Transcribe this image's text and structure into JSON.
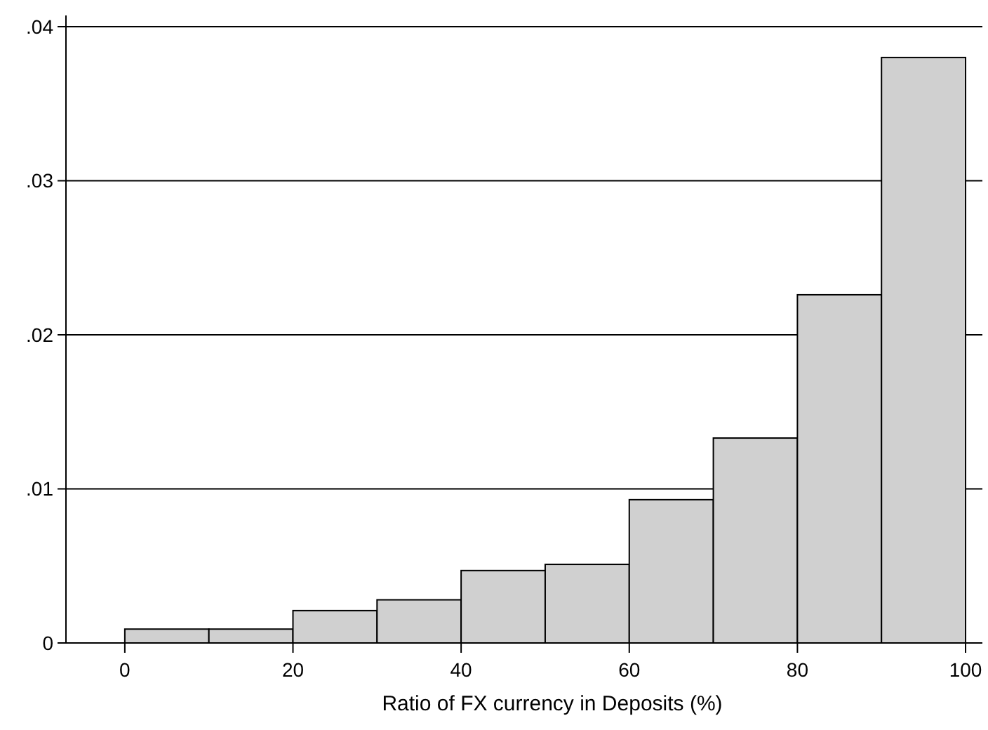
{
  "chart_data": {
    "type": "histogram",
    "xlabel": "Ratio of FX currency in Deposits (%)",
    "bins": [
      0,
      10,
      20,
      30,
      40,
      50,
      60,
      70,
      80,
      90,
      100
    ],
    "values": [
      0.0009,
      0.0009,
      0.0021,
      0.0028,
      0.0047,
      0.0051,
      0.0093,
      0.0133,
      0.0226,
      0.038
    ],
    "color": "#d0d0d0",
    "xlim": [
      -7,
      102
    ],
    "xticks": [
      0,
      20,
      40,
      60,
      80,
      100
    ],
    "ylim": [
      0,
      0.04
    ],
    "yticks": [
      {
        "value": 0,
        "label": "0"
      },
      {
        "value": 0.01,
        "label": ".01"
      },
      {
        "value": 0.02,
        "label": ".02"
      },
      {
        "value": 0.03,
        "label": ".03"
      },
      {
        "value": 0.04,
        "label": ".04"
      }
    ],
    "grid": "y"
  }
}
